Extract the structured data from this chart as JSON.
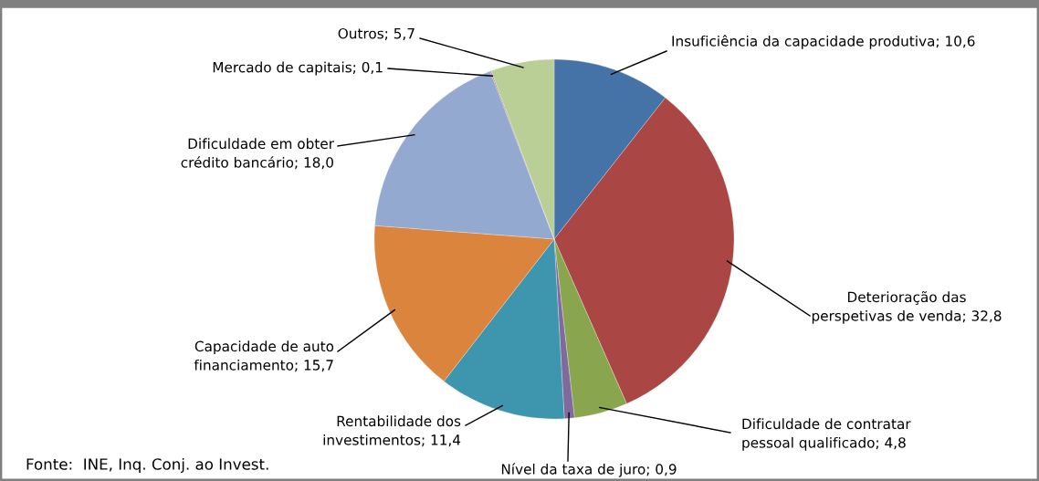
{
  "chart_data": {
    "type": "pie",
    "categories": [
      "Insuficiência da capacidade produtiva",
      "Deterioração das\nperspetivas de venda",
      "Dificuldade de contratar\npessoal qualificado",
      "Nível da taxa de juro",
      "Rentabilidade dos\ninvestimentos",
      "Capacidade de auto\nfinanciamento",
      "Dificuldade em obter\ncrédito bancário",
      "Mercado de capitais",
      "Outros"
    ],
    "values": [
      10.6,
      32.8,
      4.8,
      0.9,
      11.4,
      15.7,
      18.0,
      0.1,
      5.7
    ],
    "colors": [
      "#4572a7",
      "#aa4643",
      "#89a54e",
      "#80699b",
      "#3d96ae",
      "#db843d",
      "#93a9cf",
      "#a47d7c",
      "#b9cf96"
    ],
    "value_labels": [
      "10,6",
      "32,8",
      "4,8",
      "0,9",
      "11,4",
      "15,7",
      "18,0",
      "0,1",
      "5,7"
    ],
    "legend": false,
    "annotations": [
      "Fonte:  INE, Inq. Conj. ao Invest."
    ]
  }
}
